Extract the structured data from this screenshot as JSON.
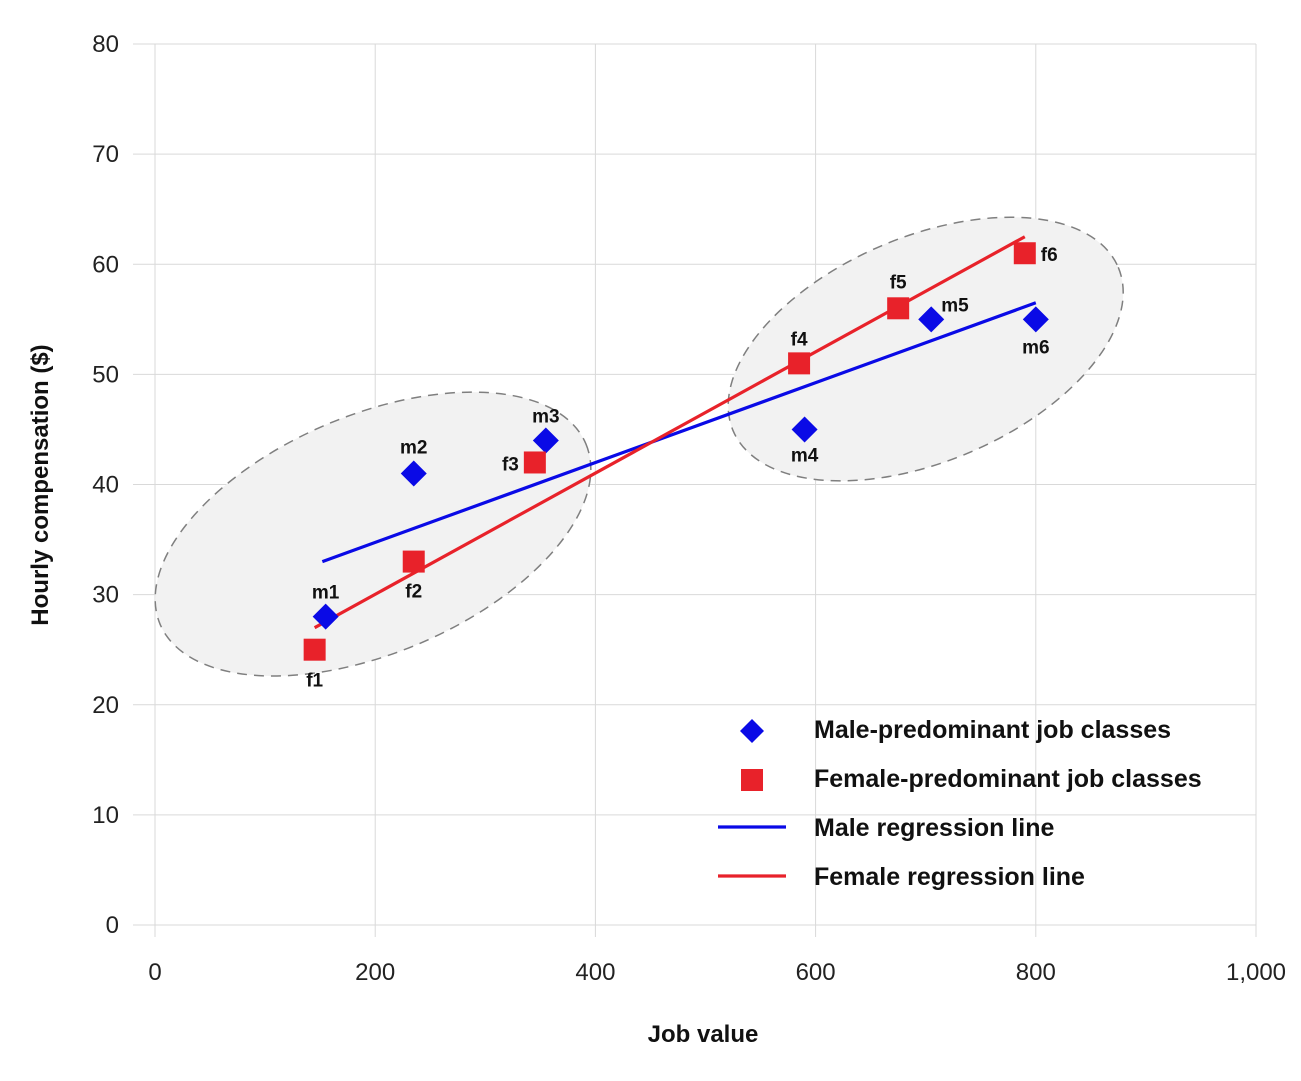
{
  "chart_data": {
    "type": "scatter",
    "xlabel": "Job value",
    "ylabel": "Hourly compensation ($)",
    "xlim": [
      0,
      1000
    ],
    "ylim": [
      0,
      80
    ],
    "x_ticks": [
      0,
      200,
      400,
      600,
      800,
      1000
    ],
    "x_tick_labels": [
      "0",
      "200",
      "400",
      "600",
      "800",
      "1,000"
    ],
    "y_ticks": [
      0,
      10,
      20,
      30,
      40,
      50,
      60,
      70,
      80
    ],
    "y_tick_labels": [
      "0",
      "10",
      "20",
      "30",
      "40",
      "50",
      "60",
      "70",
      "80"
    ],
    "grid": true,
    "legend_position": "bottom-right",
    "colors": {
      "male": "#0a0ae6",
      "female": "#e8222a",
      "grid": "#d9d9d9",
      "ellipse_fill": "#f2f2f2",
      "ellipse_stroke": "#7f7f7f"
    },
    "series": [
      {
        "name": "Male-predominant job classes",
        "marker": "diamond",
        "points": [
          {
            "label": "m1",
            "x": 155,
            "y": 28
          },
          {
            "label": "m2",
            "x": 235,
            "y": 41
          },
          {
            "label": "m3",
            "x": 355,
            "y": 44
          },
          {
            "label": "m4",
            "x": 590,
            "y": 45
          },
          {
            "label": "m5",
            "x": 705,
            "y": 55
          },
          {
            "label": "m6",
            "x": 800,
            "y": 55
          }
        ]
      },
      {
        "name": "Female-predominant job classes",
        "marker": "square",
        "points": [
          {
            "label": "f1",
            "x": 145,
            "y": 25
          },
          {
            "label": "f2",
            "x": 235,
            "y": 33
          },
          {
            "label": "f3",
            "x": 345,
            "y": 42
          },
          {
            "label": "f4",
            "x": 585,
            "y": 51
          },
          {
            "label": "f5",
            "x": 675,
            "y": 56
          },
          {
            "label": "f6",
            "x": 790,
            "y": 61
          }
        ]
      },
      {
        "name": "Male regression line",
        "marker": "line",
        "points": [
          {
            "x": 152,
            "y": 33
          },
          {
            "x": 800,
            "y": 56.5
          }
        ]
      },
      {
        "name": "Female regression line",
        "marker": "line",
        "points": [
          {
            "x": 145,
            "y": 27
          },
          {
            "x": 790,
            "y": 62.5
          }
        ]
      }
    ],
    "clusters": [
      {
        "center": [
          198,
          35.5
        ],
        "radius_x": 210,
        "radius_y": 10.8,
        "rotation_deg": -23
      },
      {
        "center": [
          700,
          52.3
        ],
        "radius_x": 190,
        "radius_y": 10.2,
        "rotation_deg": -23
      }
    ]
  }
}
